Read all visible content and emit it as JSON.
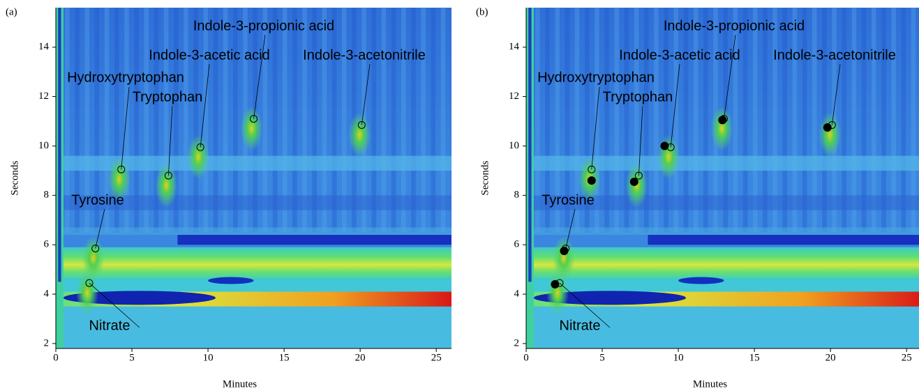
{
  "chart_data": [
    {
      "type": "scatter",
      "label": "(a)",
      "xlabel": "Minutes",
      "ylabel": "Seconds",
      "xlim": [
        0,
        26
      ],
      "ylim": [
        1.8,
        15.6
      ],
      "xticks": [
        0,
        5,
        10,
        15,
        20,
        25
      ],
      "yticks": [
        2,
        4,
        6,
        8,
        10,
        12,
        14
      ],
      "annotations": [
        "Nitrate",
        "Tyrosine",
        "Hydroxytryptophan",
        "Tryptophan",
        "Indole-3-acetic acid",
        "Indole-3-propionic acid",
        "Indole-3-acetonitrile"
      ],
      "series": [
        {
          "marker": "open",
          "color": "#000000",
          "x": [
            2.2,
            2.6,
            4.3,
            7.4,
            9.5,
            13.0,
            20.1
          ],
          "values": [
            4.45,
            5.85,
            9.05,
            8.8,
            9.95,
            11.1,
            10.85
          ]
        }
      ]
    },
    {
      "type": "scatter",
      "label": "(b)",
      "xlabel": "Minutes",
      "ylabel": "Seconds",
      "xlim": [
        0,
        26
      ],
      "ylim": [
        1.8,
        15.6
      ],
      "xticks": [
        0,
        5,
        10,
        15,
        20,
        25
      ],
      "yticks": [
        2,
        4,
        6,
        8,
        10,
        12,
        14
      ],
      "annotations": [
        "Nitrate",
        "Tyrosine",
        "Hydroxytryptophan",
        "Tryptophan",
        "Indole-3-acetic acid",
        "Indole-3-propionic acid",
        "Indole-3-acetonitrile"
      ],
      "series": [
        {
          "marker": "open",
          "color": "#000000",
          "x": [
            2.2,
            2.6,
            4.3,
            7.4,
            9.5,
            13.0,
            20.1
          ],
          "values": [
            4.45,
            5.85,
            9.05,
            8.8,
            9.95,
            11.1,
            10.85
          ]
        },
        {
          "marker": "filled",
          "color": "#000000",
          "x": [
            1.9,
            2.5,
            4.3,
            7.1,
            9.1,
            12.9,
            19.8
          ],
          "values": [
            4.4,
            5.75,
            8.6,
            8.55,
            10.0,
            11.05,
            10.75
          ]
        }
      ]
    }
  ]
}
